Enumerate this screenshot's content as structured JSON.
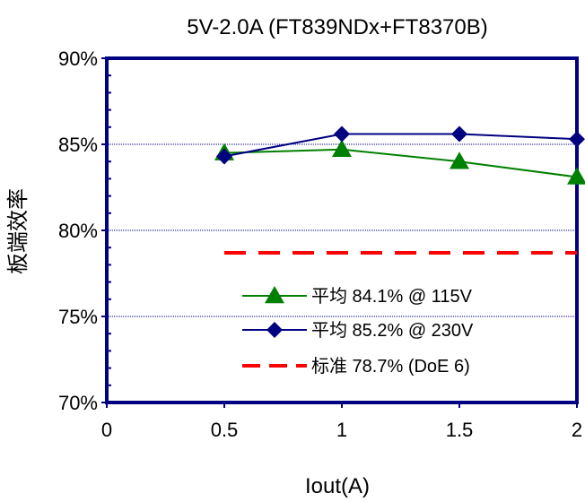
{
  "chart_data": {
    "type": "line",
    "title": "5V-2.0A (FT839NDx+FT8370B)",
    "xlabel": "Iout(A)",
    "ylabel": "板端效率",
    "xlim": [
      0,
      2
    ],
    "ylim": [
      70,
      90
    ],
    "x_ticks": [
      "0",
      "0.5",
      "1",
      "1.5",
      "2"
    ],
    "y_ticks": [
      "70%",
      "75%",
      "80%",
      "85%",
      "90%"
    ],
    "grid": true,
    "legend_position": "bottom-right",
    "series": [
      {
        "name": "平均 84.1% @ 115V",
        "color": "#008000",
        "marker": "triangle",
        "x": [
          0.5,
          1,
          1.5,
          2
        ],
        "y": [
          84.5,
          84.7,
          84.0,
          83.1
        ]
      },
      {
        "name": "平均 85.2% @ 230V",
        "color": "#000080",
        "marker": "diamond",
        "x": [
          0.5,
          1,
          1.5,
          2
        ],
        "y": [
          84.3,
          85.6,
          85.6,
          85.3
        ]
      },
      {
        "name": "标准 78.7% (DoE 6)",
        "color": "#ff0000",
        "marker": "none",
        "dashed": true,
        "x": [
          0.5,
          2
        ],
        "y": [
          78.7,
          78.7
        ]
      }
    ]
  }
}
